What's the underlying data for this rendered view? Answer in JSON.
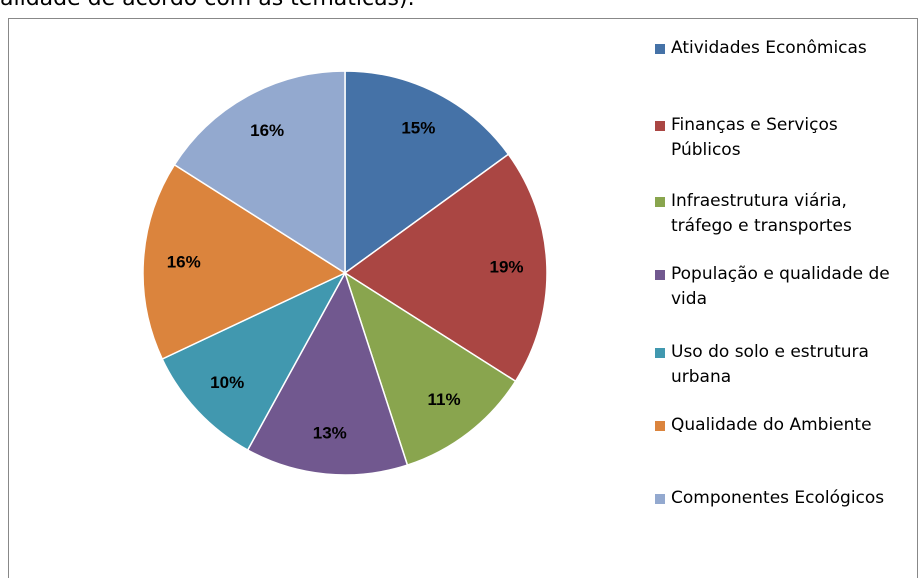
{
  "caption": "alidade de acordo com as temáticas).",
  "chart_data": {
    "type": "pie",
    "categories": [
      "Atividades Econômicas",
      "Finanças e Serviços Públicos",
      "Infraestrutura viária, tráfego e transportes",
      "População e qualidade de vida",
      "Uso do solo e estrutura urbana",
      "Qualidade do Ambiente",
      "Componentes Ecológicos"
    ],
    "values": [
      15,
      19,
      11,
      13,
      10,
      16,
      16
    ],
    "value_labels": [
      "15%",
      "19%",
      "11%",
      "13%",
      "10%",
      "16%",
      "16%"
    ],
    "colors": [
      "#4572a7",
      "#aa4643",
      "#89a54e",
      "#71588f",
      "#4198af",
      "#db843d",
      "#93a9cf"
    ],
    "legend": "right"
  }
}
